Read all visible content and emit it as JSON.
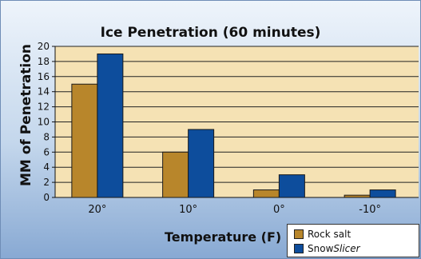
{
  "chart_data": {
    "type": "bar",
    "title": "Ice Penetration (60 minutes)",
    "xlabel": "Temperature (F)",
    "ylabel": "MM of Penetration",
    "categories": [
      "20°",
      "10°",
      "0°",
      "-10°"
    ],
    "ylim": [
      0,
      20
    ],
    "yticks": [
      0,
      2,
      4,
      6,
      8,
      10,
      12,
      14,
      16,
      18,
      20
    ],
    "grid": true,
    "legend_position": "bottom-right",
    "series": [
      {
        "name": "Rock salt",
        "values": [
          15,
          6,
          1,
          0.3
        ],
        "color": "#b8862b"
      },
      {
        "name": "SnowSlicer",
        "values": [
          19,
          9,
          3,
          1
        ],
        "color": "#0d4d9c"
      }
    ]
  },
  "legend": {
    "items": [
      {
        "label": "Rock salt"
      },
      {
        "label_plain": "Snow",
        "label_italic": "Slicer"
      }
    ]
  },
  "colors": {
    "plot_background": "#f5e2b4",
    "gridline": "#222222"
  }
}
